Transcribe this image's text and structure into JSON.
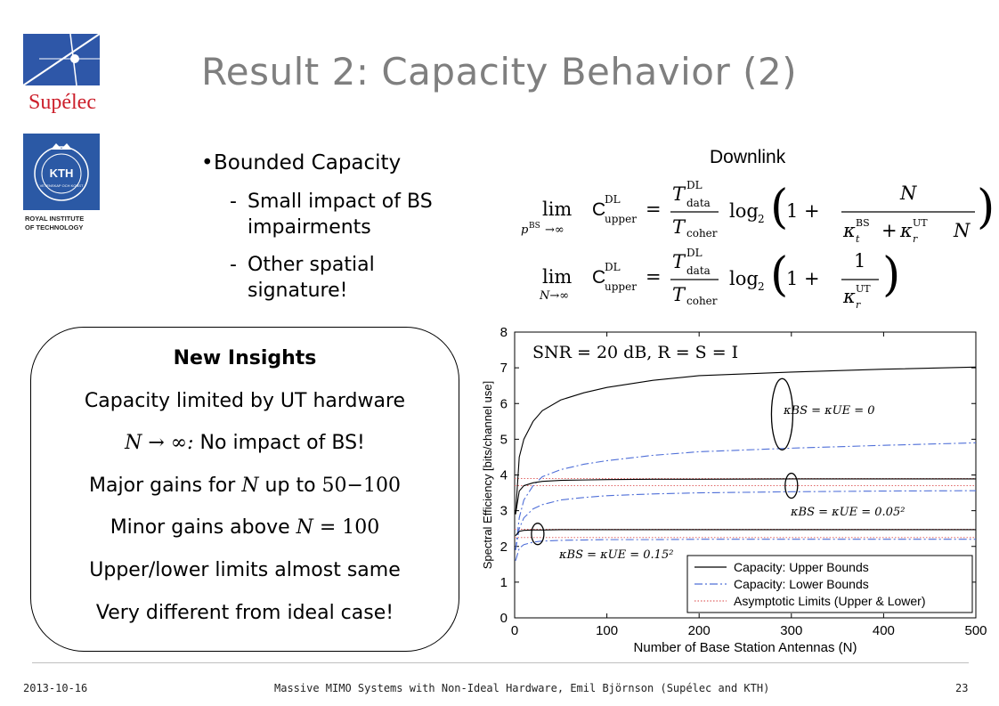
{
  "logos": {
    "supelec": "Supélec",
    "kth_text": "KTH",
    "kth_ring": "VETENSKAP OCH KONST",
    "kth_caption_1": "ROYAL INSTITUTE",
    "kth_caption_2": "OF TECHNOLOGY"
  },
  "title": "Result 2: Capacity Behavior (2)",
  "bullets": {
    "main": "Bounded Capacity",
    "sub1": "Small impact of BS impairments",
    "sub2": "Other spatial signature!",
    "dash": "-"
  },
  "insights": {
    "heading": "New Insights",
    "line1": "Capacity limited by UT hardware",
    "line2_math": "N → ∞:",
    "line2_text": " No impact of BS!",
    "line3_a": "Major gains for ",
    "line3_n": "N",
    "line3_b": " up to ",
    "line3_range": "50−100",
    "line4_a": "Minor gains above ",
    "line4_n": "N",
    "line4_eq": " = 100",
    "line5": "Upper/lower limits almost same",
    "line6": "Very different from ideal case!"
  },
  "formula": {
    "heading": "Downlink",
    "lim": "lim",
    "sub1": "p",
    "sub1_sup": "BS",
    "sub1_arrow": "→∞",
    "sub2": "N→∞",
    "C": "C",
    "C_sup": "DL",
    "C_sub": "upper",
    "T": "T",
    "T_sup": "DL",
    "T_sub": "data",
    "Tc_sub": "coher",
    "log": "log",
    "log_sub": "2",
    "one_plus": "1 +",
    "N": "N",
    "kappa": "κ",
    "kt_sup": "BS",
    "kt_sub": "t",
    "kr_sup": "UT",
    "kr_sub": "r",
    "plus": "+",
    "eq": "=",
    "one": "1"
  },
  "chart_data": {
    "type": "line",
    "annotation_top": "SNR = 20 dB, R  = S = I",
    "xlabel": "Number of Base Station Antennas (N)",
    "ylabel": "Spectral Efficiency [bits/channel use]",
    "xlim": [
      0,
      500
    ],
    "ylim": [
      0,
      8
    ],
    "xticks": [
      "0",
      "100",
      "200",
      "300",
      "400",
      "500"
    ],
    "yticks": [
      "0",
      "1",
      "2",
      "3",
      "4",
      "5",
      "6",
      "7",
      "8"
    ],
    "legend": [
      "Capacity: Upper Bounds",
      "Capacity: Lower Bounds",
      "Asymptotic Limits (Upper & Lower)"
    ],
    "legend_position": "bottom-right",
    "curve_labels": [
      "κBS = κUE = 0",
      "κBS = κUE = 0.05²",
      "κBS = κUE = 0.15²"
    ],
    "colors": {
      "upper": "#000000",
      "lower": "#4f6fd8",
      "asymptote": "#e06666"
    },
    "x": [
      1,
      5,
      10,
      20,
      30,
      50,
      75,
      100,
      150,
      200,
      300,
      400,
      500
    ],
    "series": [
      {
        "group": "Capacity: Upper Bounds",
        "kappa": "0",
        "values": [
          2.9,
          4.5,
          5.0,
          5.5,
          5.8,
          6.1,
          6.3,
          6.45,
          6.65,
          6.78,
          6.88,
          6.96,
          7.02
        ]
      },
      {
        "group": "Capacity: Lower Bounds",
        "kappa": "0",
        "values": [
          1.9,
          2.8,
          3.3,
          3.7,
          3.95,
          4.15,
          4.3,
          4.4,
          4.55,
          4.65,
          4.75,
          4.83,
          4.9
        ]
      },
      {
        "group": "Capacity: Upper Bounds",
        "kappa": "0.05²",
        "values": [
          2.9,
          3.55,
          3.7,
          3.78,
          3.82,
          3.85,
          3.86,
          3.87,
          3.88,
          3.88,
          3.89,
          3.89,
          3.89
        ]
      },
      {
        "group": "Capacity: Lower Bounds",
        "kappa": "0.05²",
        "values": [
          1.9,
          2.5,
          2.8,
          3.05,
          3.17,
          3.3,
          3.37,
          3.42,
          3.47,
          3.5,
          3.53,
          3.55,
          3.56
        ]
      },
      {
        "group": "Capacity: Upper Bounds",
        "kappa": "0.15²",
        "values": [
          2.3,
          2.42,
          2.45,
          2.46,
          2.46,
          2.47,
          2.47,
          2.47,
          2.47,
          2.47,
          2.47,
          2.47,
          2.47
        ]
      },
      {
        "group": "Capacity: Lower Bounds",
        "kappa": "0.15²",
        "values": [
          1.6,
          1.95,
          2.05,
          2.12,
          2.15,
          2.17,
          2.18,
          2.19,
          2.19,
          2.2,
          2.2,
          2.2,
          2.2
        ]
      }
    ],
    "asymptotes": [
      3.9,
      3.7,
      2.48,
      2.25
    ]
  },
  "footer": {
    "date": "2013-10-16",
    "center": "Massive MIMO Systems with Non-Ideal Hardware, Emil Björnson (Supélec and KTH)",
    "page": "23"
  }
}
